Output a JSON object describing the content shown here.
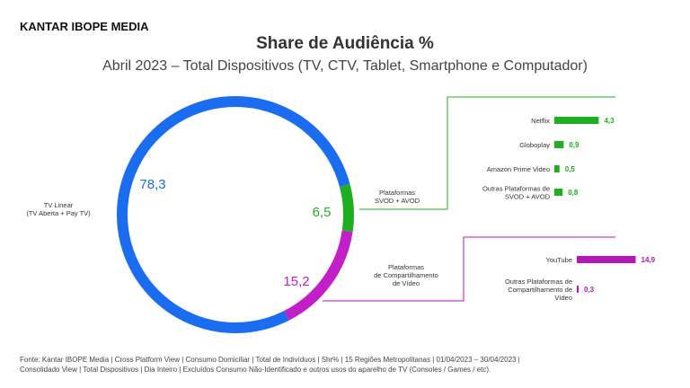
{
  "brand": "KANTAR IBOPE MEDIA",
  "chart_data": {
    "type": "donut",
    "title": "Share de Audiência %",
    "subtitle": "Abril 2023 – Total Dispositivos (TV, CTV, Tablet, Smartphone e Computador)",
    "slices": [
      {
        "label": "TV Linear\n(TV Aberta + Pay TV)",
        "value": 78.3,
        "value_label": "78,3",
        "color": "#1a6cf0"
      },
      {
        "label": "Plataformas\nSVOD + AVOD",
        "value": 6.5,
        "value_label": "6,5",
        "color": "#1fae1f"
      },
      {
        "label": "Plataformas\nde Compartilhamento\nde Vídeo",
        "value": 15.2,
        "value_label": "15,2",
        "color": "#c21fc8"
      }
    ],
    "svod_breakdown": {
      "type": "bar",
      "color": "#1fae1f",
      "categories": [
        "Netflix",
        "Globoplay",
        "Amazon Prime Video",
        "Outras Plataformas de\nSVOD + AVOD"
      ],
      "values": [
        4.3,
        0.9,
        0.5,
        0.8
      ],
      "value_labels": [
        "4,3",
        "0,9",
        "0,5",
        "0,8"
      ]
    },
    "video_sharing_breakdown": {
      "type": "bar",
      "color": "#b515ba",
      "categories": [
        "YouTube",
        "Outras Plataformas de\nCompartilhamento de\nVídeo"
      ],
      "values": [
        14.9,
        0.3
      ],
      "value_labels": [
        "14,9",
        "0,3"
      ]
    }
  },
  "footnote": {
    "line1": "Fonte: Kantar IBOPE Media | Cross Platform View | Consumo Domiciliar | Total de Indivíduos | Shr% | 15 Regiões Metropolitanas | 01/04/2023 – 30/04/2023 |",
    "line2": "Consolidado View | Total Dispositivos | Dia Inteiro | Excluídos Consumo Não-Identificado e outros usos do aparelho de TV (Consoles / Games / etc)."
  }
}
